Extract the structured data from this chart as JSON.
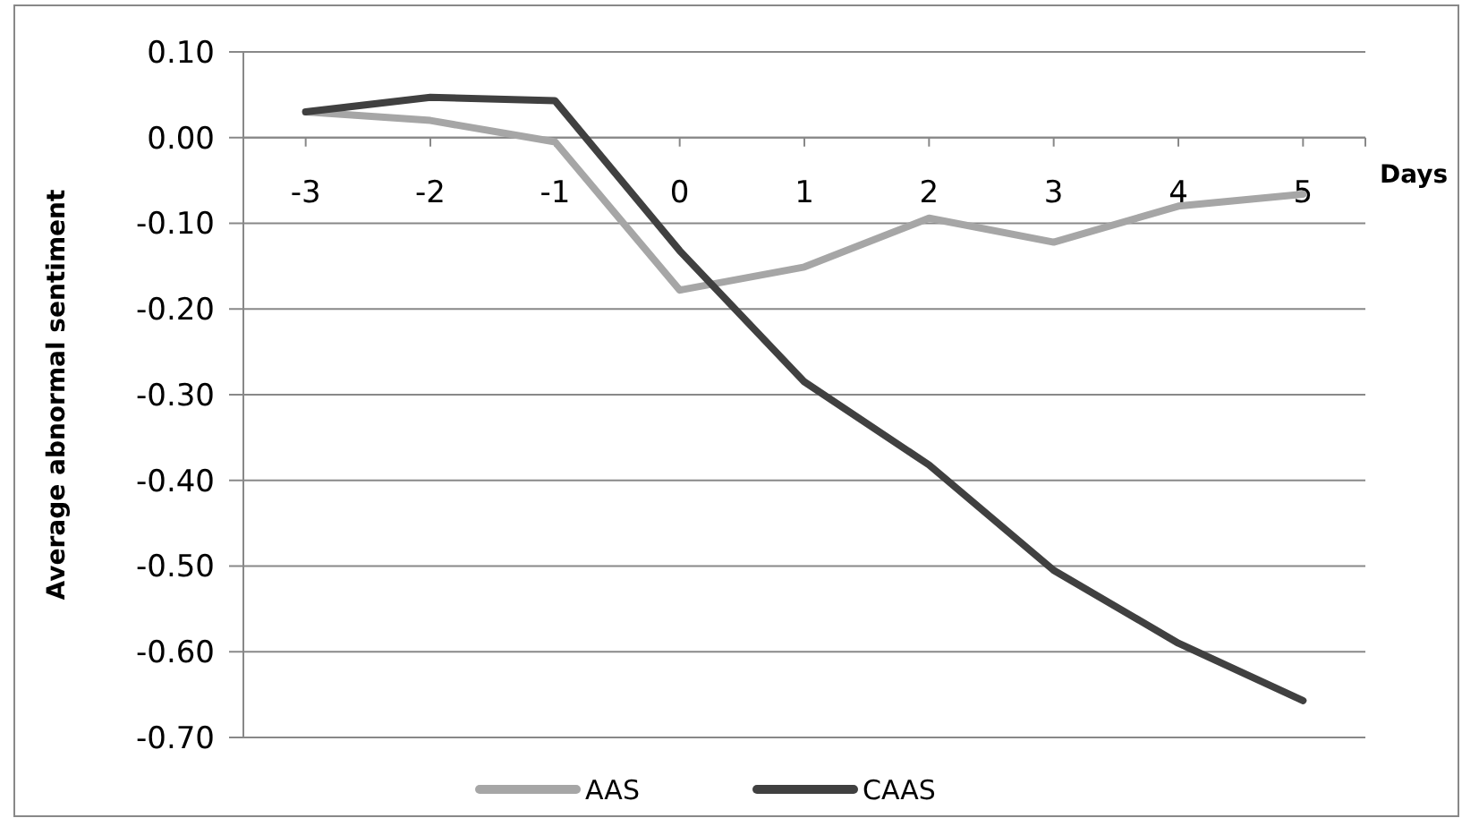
{
  "chart_data": {
    "type": "line",
    "xlabel": "Days",
    "ylabel": "Average abnormal sentiment",
    "categories": [
      "-3",
      "-2",
      "-1",
      "0",
      "1",
      "2",
      "3",
      "4",
      "5"
    ],
    "series": [
      {
        "name": "AAS",
        "color": "#a6a6a6",
        "values": [
          0.03,
          0.02,
          -0.005,
          -0.178,
          -0.151,
          -0.094,
          -0.122,
          -0.08,
          -0.066
        ]
      },
      {
        "name": "CAAS",
        "color": "#404040",
        "values": [
          0.03,
          0.047,
          0.043,
          -0.132,
          -0.285,
          -0.382,
          -0.505,
          -0.59,
          -0.657
        ]
      }
    ],
    "ylim": [
      -0.7,
      0.1
    ],
    "yticks": [
      {
        "value": 0.1,
        "label": "0.10"
      },
      {
        "value": 0,
        "label": "0.00"
      },
      {
        "value": -0.1,
        "label": "-0.10"
      },
      {
        "value": -0.2,
        "label": "-0.20"
      },
      {
        "value": -0.3,
        "label": "-0.30"
      },
      {
        "value": -0.4,
        "label": "-0.40"
      },
      {
        "value": -0.5,
        "label": "-0.50"
      },
      {
        "value": -0.6,
        "label": "-0.60"
      },
      {
        "value": -0.7,
        "label": "-0.70"
      }
    ],
    "grid": "y",
    "legend": "bottom",
    "marker": "none",
    "line_style": "solid"
  }
}
